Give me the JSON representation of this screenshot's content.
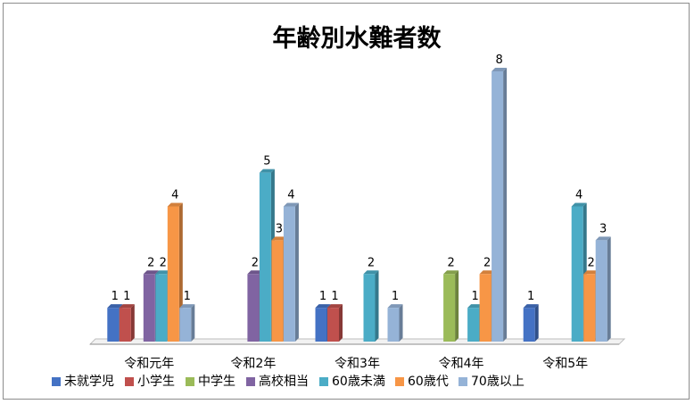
{
  "chart_data": {
    "type": "bar",
    "title": "年齢別水難者数",
    "categories": [
      "令和元年",
      "令和2年",
      "令和3年",
      "令和4年",
      "令和5年"
    ],
    "series": [
      {
        "name": "未就学児",
        "color": "#4472C4",
        "values": [
          1,
          0,
          1,
          0,
          1
        ]
      },
      {
        "name": "小学生",
        "color": "#C0504D",
        "values": [
          1,
          0,
          1,
          0,
          0
        ]
      },
      {
        "name": "中学生",
        "color": "#9BBB59",
        "values": [
          0,
          0,
          0,
          2,
          0
        ]
      },
      {
        "name": "高校相当",
        "color": "#8064A2",
        "values": [
          2,
          2,
          0,
          0,
          0
        ]
      },
      {
        "name": "60歳未満",
        "color": "#4BACC6",
        "values": [
          2,
          5,
          2,
          1,
          4
        ]
      },
      {
        "name": "60歳代",
        "color": "#F79646",
        "values": [
          4,
          3,
          0,
          2,
          2
        ]
      },
      {
        "name": "70歳以上",
        "color": "#95B3D7",
        "values": [
          1,
          4,
          1,
          8,
          3
        ]
      }
    ],
    "ylim": [
      0,
      8
    ],
    "grid": false,
    "legend_position": "bottom",
    "data_labels": true,
    "style": "3d-clustered-column"
  }
}
